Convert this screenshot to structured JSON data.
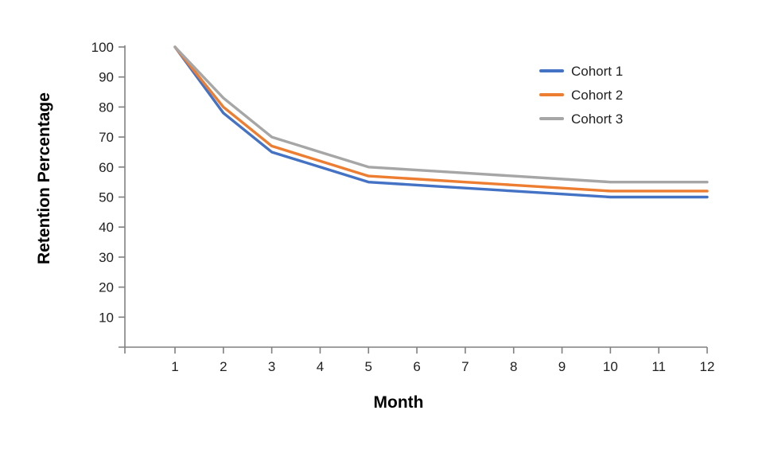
{
  "chart_data": {
    "type": "line",
    "title": "",
    "xlabel": "Month",
    "ylabel": "Retention Percentage",
    "x": [
      1,
      2,
      3,
      4,
      5,
      6,
      7,
      8,
      9,
      10,
      11,
      12
    ],
    "series": [
      {
        "name": "Cohort 1",
        "color": "#4472C4",
        "values": [
          100,
          78,
          65,
          60,
          55,
          54,
          53,
          52,
          51,
          50,
          50,
          50
        ]
      },
      {
        "name": "Cohort 2",
        "color": "#ED7D31",
        "values": [
          100,
          80,
          67,
          62,
          57,
          56,
          55,
          54,
          53,
          52,
          52,
          52
        ]
      },
      {
        "name": "Cohort 3",
        "color": "#A6A6A6",
        "values": [
          100,
          83,
          70,
          65,
          60,
          59,
          58,
          57,
          56,
          55,
          55,
          55
        ]
      }
    ],
    "xticks": [
      1,
      2,
      3,
      4,
      5,
      6,
      7,
      8,
      9,
      10,
      11,
      12
    ],
    "yticks": [
      10,
      20,
      30,
      40,
      50,
      60,
      70,
      80,
      90,
      100
    ],
    "ylim": [
      0,
      100
    ],
    "xlim": [
      1,
      12
    ],
    "grid": false,
    "legend_position": "top-right",
    "colors": {
      "axis": "#808080",
      "tick_label": "#1f1f1f",
      "axis_title": "#000000",
      "background": "#ffffff"
    }
  }
}
